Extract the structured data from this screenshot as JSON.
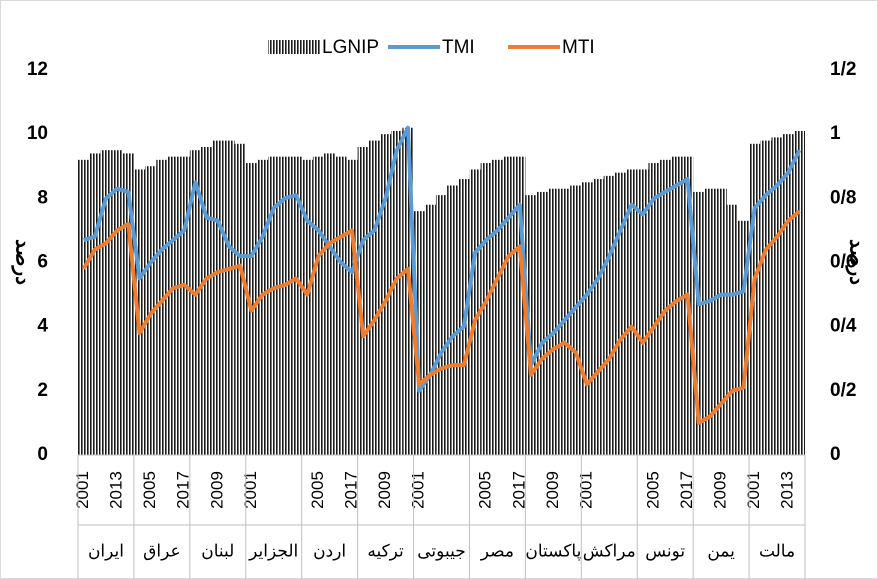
{
  "chart_data": {
    "type": "bar-line",
    "y_label": "درصد",
    "y2_label": "درصد",
    "groups": [
      "ایران",
      "عراق",
      "لبنان",
      "الجزایر",
      "اردن",
      "ترکیه",
      "جیبوتی",
      "مصر",
      "پاکستان",
      "مراکش",
      "تونس",
      "یمن",
      "مالت"
    ],
    "categories": [
      "2001",
      null,
      null,
      "2013",
      null,
      null,
      "2005",
      null,
      null,
      "2017",
      null,
      null,
      "2009",
      null,
      null,
      "2001",
      null,
      null,
      null,
      null,
      null,
      "2005",
      null,
      null,
      "2017",
      null,
      null,
      "2009",
      null,
      null,
      "2001",
      null,
      null,
      null,
      null,
      null,
      "2005",
      null,
      null,
      "2017",
      null,
      null,
      "2009",
      null,
      null,
      "2001",
      null,
      null,
      null,
      null,
      null,
      "2005",
      null,
      null,
      "2017",
      null,
      null,
      "2009",
      null,
      null,
      "2001",
      null,
      null,
      "2013",
      null
    ],
    "series": [
      {
        "name": "LGNIP",
        "color": "#1a1a1a",
        "type": "bar",
        "values": [
          9.2,
          9.4,
          9.5,
          9.5,
          9.4,
          8.9,
          9.0,
          9.2,
          9.3,
          9.3,
          9.5,
          9.6,
          9.8,
          9.8,
          9.7,
          9.1,
          9.2,
          9.3,
          9.3,
          9.3,
          9.2,
          9.3,
          9.4,
          9.3,
          9.2,
          9.6,
          9.8,
          10,
          10.1,
          10.2,
          7.6,
          7.8,
          8.1,
          8.4,
          8.6,
          8.9,
          9.1,
          9.2,
          9.3,
          9.3,
          8.1,
          8.2,
          8.3,
          8.3,
          8.4,
          8.5,
          8.6,
          8.7,
          8.8,
          8.9,
          8.9,
          9.1,
          9.2,
          9.3,
          9.3,
          8.2,
          8.3,
          8.3,
          7.8,
          7.3,
          9.7,
          9.8,
          9.9,
          10,
          10.1
        ]
      },
      {
        "name": "TMI",
        "color": "#5b9bd5",
        "type": "line",
        "axis": "y2",
        "values": [
          0.67,
          0.68,
          0.8,
          0.83,
          0.82,
          0.55,
          0.6,
          0.64,
          0.67,
          0.7,
          0.85,
          0.74,
          0.73,
          0.65,
          0.62,
          0.62,
          0.68,
          0.77,
          0.8,
          0.81,
          0.73,
          0.7,
          0.65,
          0.6,
          0.57,
          0.67,
          0.7,
          0.8,
          0.95,
          1.02,
          0.2,
          0.25,
          0.32,
          0.37,
          0.4,
          0.63,
          0.67,
          0.7,
          0.74,
          0.78,
          0.28,
          0.35,
          0.38,
          0.42,
          0.46,
          0.5,
          0.55,
          0.62,
          0.7,
          0.78,
          0.75,
          0.8,
          0.82,
          0.84,
          0.86,
          0.47,
          0.48,
          0.5,
          0.5,
          0.51,
          0.77,
          0.81,
          0.84,
          0.88,
          0.95
        ]
      },
      {
        "name": "MTI",
        "color": "#ed7d31",
        "type": "line",
        "axis": "y2",
        "values": [
          0.58,
          0.64,
          0.66,
          0.7,
          0.72,
          0.38,
          0.44,
          0.48,
          0.52,
          0.53,
          0.5,
          0.55,
          0.57,
          0.58,
          0.59,
          0.45,
          0.5,
          0.52,
          0.53,
          0.55,
          0.5,
          0.62,
          0.66,
          0.68,
          0.7,
          0.37,
          0.42,
          0.48,
          0.55,
          0.58,
          0.22,
          0.25,
          0.27,
          0.28,
          0.28,
          0.42,
          0.48,
          0.55,
          0.62,
          0.65,
          0.25,
          0.3,
          0.33,
          0.35,
          0.32,
          0.22,
          0.26,
          0.3,
          0.36,
          0.4,
          0.35,
          0.4,
          0.45,
          0.48,
          0.5,
          0.1,
          0.12,
          0.16,
          0.2,
          0.21,
          0.55,
          0.64,
          0.68,
          0.73,
          0.76
        ]
      }
    ],
    "ylim": [
      0,
      12
    ],
    "yticks": [
      0,
      2,
      4,
      6,
      8,
      10,
      12
    ],
    "y2lim": [
      0,
      1.2
    ],
    "y2ticks": [
      0,
      {
        "value": 0.2,
        "label": "0/2"
      },
      {
        "value": 0.4,
        "label": "0/4"
      },
      {
        "value": 0.6,
        "label": "0/6"
      },
      {
        "value": 0.8,
        "label": "0/8"
      },
      1,
      {
        "value": 1.2,
        "label": "1/2"
      }
    ],
    "legend": "top"
  }
}
